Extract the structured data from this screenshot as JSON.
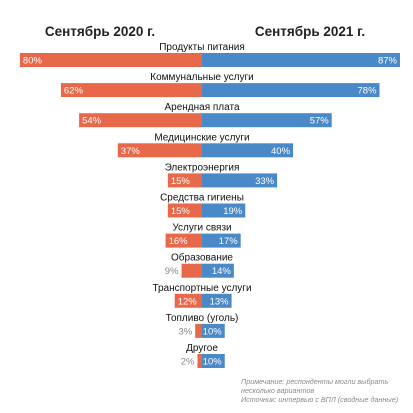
{
  "chart_data": {
    "type": "bar",
    "headers": {
      "left": "Сентябрь 2020 г.",
      "right": "Сентябрь 2021 г."
    },
    "categories": [
      "Продукты питания",
      "Коммунальные услуги",
      "Арендная плата",
      "Медицинские услуги",
      "Электроэнергия",
      "Средства гигиены",
      "Услуги связи",
      "Образование",
      "Транспортные услуги",
      "Топливо (уголь)",
      "Другое"
    ],
    "series": [
      {
        "name": "Сентябрь 2020 г.",
        "side": "left",
        "color": "#e8684a",
        "values": [
          80,
          62,
          54,
          37,
          15,
          15,
          16,
          9,
          12,
          3,
          2
        ]
      },
      {
        "name": "Сентябрь 2021 г.",
        "side": "right",
        "color": "#4a89c8",
        "values": [
          87,
          78,
          57,
          40,
          33,
          19,
          17,
          14,
          13,
          10,
          10
        ]
      }
    ],
    "value_suffix": "%",
    "xlim": [
      0,
      87
    ],
    "grid": false,
    "notes": [
      "Примечание: респонденты могли выбрать",
      "несколько вариантов",
      "Источник: интервью с ВПЛ (сводные данные)"
    ]
  }
}
